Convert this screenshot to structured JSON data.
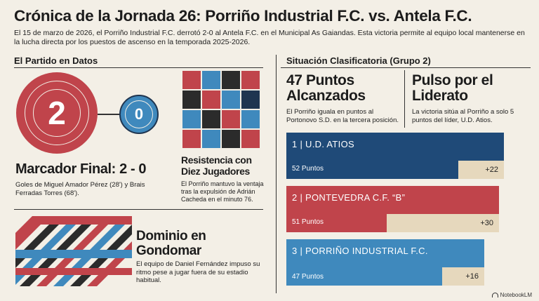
{
  "header": {
    "title": "Crónica de la Jornada 26: Porriño Industrial F.C. vs. Antela F.C.",
    "intro": "El 15 de marzo de 2026, el Porriño Industrial F.C. derrotó 2-0 al Antela F.C. en el Municipal As Gaiandas. Esta victoria permite al equipo local mantenerse en la lucha directa por los puestos de ascenso en la temporada 2025-2026."
  },
  "left": {
    "section_title": "El Partido en Datos",
    "score_home": "2",
    "score_away": "0",
    "score_heading": "Marcador Final: 2 - 0",
    "score_text": "Goles de Miguel Amador Pérez (28') y Brais Ferradas Torres (68').",
    "resistance_heading": "Resistencia con Diez Jugadores",
    "resistance_text": "El Porriño mantuvo la ventaja tras la expulsión de Adrián Cacheda en el minuto 76.",
    "dominio_heading": "Dominio en Gondomar",
    "dominio_text": "El equipo de Daniel Fernández impuso su ritmo pese a jugar fuera de su estadio habitual."
  },
  "right": {
    "section_title": "Situación Clasificatoria (Grupo 2)",
    "points_heading": "47 Puntos Alcanzados",
    "points_text": "El Porriño iguala en puntos al Portonovo S.D. en la tercera posición.",
    "pulse_heading": "Pulso por el Liderato",
    "pulse_text": "La victoria sitúa al Porriño a solo 5 puntos del líder, U.D. Atios.",
    "standings": [
      {
        "name": "1 | U.D. ATIOS",
        "points": "52 Puntos",
        "diff": "+22",
        "color": "#1f4a78"
      },
      {
        "name": "2 | PONTEVEDRA C.F. “B”",
        "points": "51 Puntos",
        "diff": "+30",
        "color": "#c0444b"
      },
      {
        "name": "3 | PORRIÑO INDUSTRIAL F.C.",
        "points": "47 Puntos",
        "diff": "+16",
        "color": "#3f89bd"
      }
    ]
  },
  "footer": {
    "brand": "NotebookLM"
  }
}
